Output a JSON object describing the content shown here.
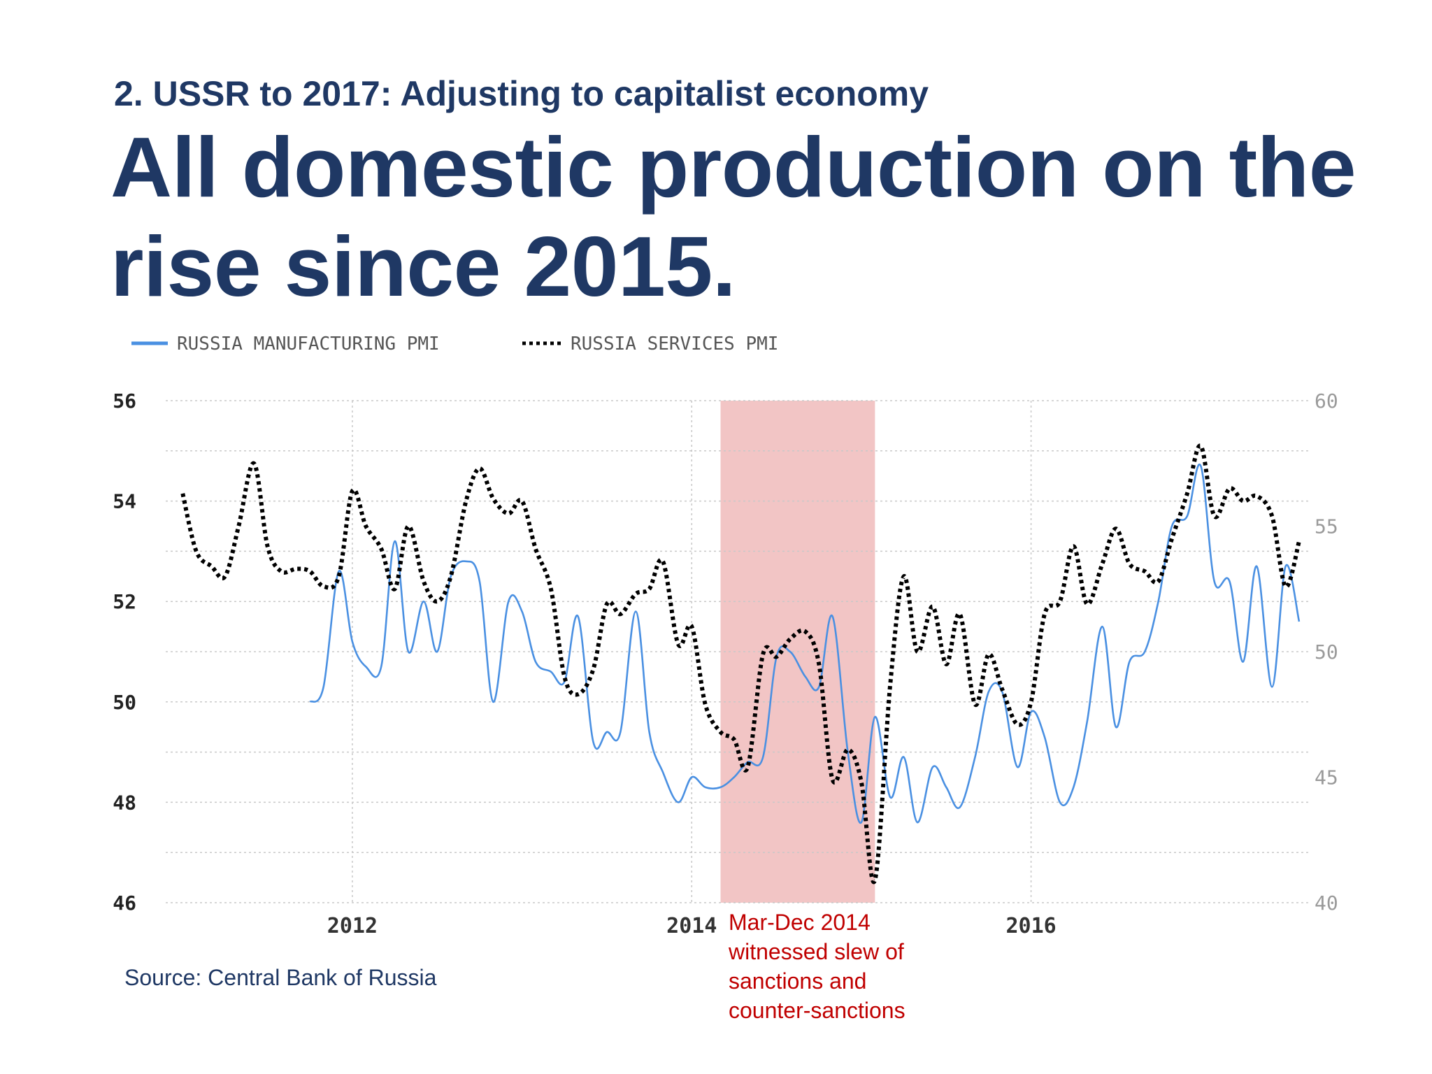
{
  "slide": {
    "subtitle": "2. USSR to 2017: Adjusting to capitalist economy",
    "title": "All domestic production on the rise since 2015.",
    "source": "Source: Central Bank of Russia",
    "annotation": "Mar-Dec 2014 witnessed slew of sanctions and counter-sanctions",
    "colors": {
      "heading": "#1f3864",
      "annotation": "#c00000",
      "manufacturing": "#4a90e2",
      "services": "#000000",
      "highlight": "#f2c5c5"
    }
  },
  "chart_data": {
    "type": "line",
    "x_ticks": [
      "2012",
      "2014",
      "2016"
    ],
    "x_tick_values": [
      2012,
      2014,
      2016
    ],
    "xlim": [
      2010.9,
      2017.65
    ],
    "y_left": {
      "ticks": [
        "46",
        "48",
        "50",
        "52",
        "54",
        "56"
      ],
      "ylim": [
        46,
        56
      ]
    },
    "y_right": {
      "ticks": [
        "40",
        "45",
        "50",
        "55",
        "60"
      ],
      "ylim": [
        40,
        60
      ]
    },
    "grid": true,
    "legend_position": "top-left",
    "highlight_region": {
      "from": 2014.17,
      "to": 2015.08
    },
    "series": [
      {
        "name": "RUSSIA MANUFACTURING PMI",
        "axis": "left",
        "style": "solid",
        "points": [
          [
            2011.75,
            50.0
          ],
          [
            2011.83,
            50.3
          ],
          [
            2011.92,
            52.6
          ],
          [
            2012.0,
            51.2
          ],
          [
            2012.08,
            50.7
          ],
          [
            2012.17,
            50.7
          ],
          [
            2012.25,
            53.2
          ],
          [
            2012.33,
            51.0
          ],
          [
            2012.42,
            52.0
          ],
          [
            2012.5,
            51.0
          ],
          [
            2012.58,
            52.5
          ],
          [
            2012.67,
            52.8
          ],
          [
            2012.75,
            52.4
          ],
          [
            2012.83,
            50.0
          ],
          [
            2012.92,
            52.0
          ],
          [
            2013.0,
            51.8
          ],
          [
            2013.08,
            50.8
          ],
          [
            2013.17,
            50.6
          ],
          [
            2013.25,
            50.4
          ],
          [
            2013.33,
            51.7
          ],
          [
            2013.42,
            49.2
          ],
          [
            2013.5,
            49.4
          ],
          [
            2013.58,
            49.4
          ],
          [
            2013.67,
            51.8
          ],
          [
            2013.75,
            49.4
          ],
          [
            2013.83,
            48.6
          ],
          [
            2013.92,
            48.0
          ],
          [
            2014.0,
            48.5
          ],
          [
            2014.08,
            48.3
          ],
          [
            2014.17,
            48.3
          ],
          [
            2014.25,
            48.5
          ],
          [
            2014.33,
            48.8
          ],
          [
            2014.42,
            48.9
          ],
          [
            2014.5,
            50.9
          ],
          [
            2014.58,
            51.0
          ],
          [
            2014.67,
            50.5
          ],
          [
            2014.75,
            50.3
          ],
          [
            2014.83,
            51.7
          ],
          [
            2014.92,
            49.0
          ],
          [
            2015.0,
            47.6
          ],
          [
            2015.08,
            49.7
          ],
          [
            2015.17,
            48.1
          ],
          [
            2015.25,
            48.9
          ],
          [
            2015.33,
            47.6
          ],
          [
            2015.42,
            48.7
          ],
          [
            2015.5,
            48.3
          ],
          [
            2015.58,
            47.9
          ],
          [
            2015.67,
            48.9
          ],
          [
            2015.75,
            50.2
          ],
          [
            2015.83,
            50.2
          ],
          [
            2015.92,
            48.7
          ],
          [
            2016.0,
            49.8
          ],
          [
            2016.08,
            49.3
          ],
          [
            2016.17,
            48.0
          ],
          [
            2016.25,
            48.3
          ],
          [
            2016.33,
            49.6
          ],
          [
            2016.42,
            51.5
          ],
          [
            2016.5,
            49.5
          ],
          [
            2016.58,
            50.8
          ],
          [
            2016.67,
            51.0
          ],
          [
            2016.75,
            52.0
          ],
          [
            2016.83,
            53.5
          ],
          [
            2016.92,
            53.7
          ],
          [
            2017.0,
            54.7
          ],
          [
            2017.08,
            52.4
          ],
          [
            2017.17,
            52.4
          ],
          [
            2017.25,
            50.8
          ],
          [
            2017.33,
            52.7
          ],
          [
            2017.42,
            50.3
          ],
          [
            2017.5,
            52.7
          ],
          [
            2017.58,
            51.6
          ]
        ]
      },
      {
        "name": "RUSSIA SERVICES PMI",
        "axis": "right",
        "style": "dotted",
        "points": [
          [
            2011.0,
            56.3
          ],
          [
            2011.08,
            54.0
          ],
          [
            2011.17,
            53.4
          ],
          [
            2011.25,
            53.0
          ],
          [
            2011.33,
            55.0
          ],
          [
            2011.42,
            57.5
          ],
          [
            2011.5,
            54.2
          ],
          [
            2011.58,
            53.2
          ],
          [
            2011.67,
            53.3
          ],
          [
            2011.75,
            53.2
          ],
          [
            2011.83,
            52.6
          ],
          [
            2011.92,
            53.0
          ],
          [
            2012.0,
            56.4
          ],
          [
            2012.08,
            55.0
          ],
          [
            2012.17,
            54.1
          ],
          [
            2012.25,
            52.5
          ],
          [
            2012.33,
            55.0
          ],
          [
            2012.42,
            52.8
          ],
          [
            2012.5,
            52.0
          ],
          [
            2012.58,
            53.0
          ],
          [
            2012.67,
            56.0
          ],
          [
            2012.75,
            57.3
          ],
          [
            2012.83,
            56.1
          ],
          [
            2012.92,
            55.5
          ],
          [
            2013.0,
            56.0
          ],
          [
            2013.08,
            54.1
          ],
          [
            2013.17,
            52.5
          ],
          [
            2013.25,
            49.0
          ],
          [
            2013.33,
            48.3
          ],
          [
            2013.42,
            49.3
          ],
          [
            2013.5,
            51.9
          ],
          [
            2013.58,
            51.5
          ],
          [
            2013.67,
            52.3
          ],
          [
            2013.75,
            52.5
          ],
          [
            2013.83,
            53.6
          ],
          [
            2013.92,
            50.3
          ],
          [
            2014.0,
            51.0
          ],
          [
            2014.08,
            47.9
          ],
          [
            2014.17,
            46.8
          ],
          [
            2014.25,
            46.5
          ],
          [
            2014.33,
            45.4
          ],
          [
            2014.42,
            49.9
          ],
          [
            2014.5,
            49.8
          ],
          [
            2014.58,
            50.5
          ],
          [
            2014.67,
            50.8
          ],
          [
            2014.75,
            49.5
          ],
          [
            2014.83,
            44.9
          ],
          [
            2014.92,
            46.1
          ],
          [
            2015.0,
            44.8
          ],
          [
            2015.08,
            40.9
          ],
          [
            2015.17,
            48.7
          ],
          [
            2015.25,
            53.0
          ],
          [
            2015.33,
            50.0
          ],
          [
            2015.42,
            51.8
          ],
          [
            2015.5,
            49.5
          ],
          [
            2015.58,
            51.5
          ],
          [
            2015.67,
            47.9
          ],
          [
            2015.75,
            49.9
          ],
          [
            2015.83,
            48.5
          ],
          [
            2015.92,
            47.1
          ],
          [
            2016.0,
            48.0
          ],
          [
            2016.08,
            51.5
          ],
          [
            2016.17,
            52.0
          ],
          [
            2016.25,
            54.2
          ],
          [
            2016.33,
            51.9
          ],
          [
            2016.42,
            53.5
          ],
          [
            2016.5,
            54.9
          ],
          [
            2016.58,
            53.5
          ],
          [
            2016.67,
            53.2
          ],
          [
            2016.75,
            52.8
          ],
          [
            2016.83,
            54.5
          ],
          [
            2016.92,
            56.3
          ],
          [
            2017.0,
            58.2
          ],
          [
            2017.08,
            55.4
          ],
          [
            2017.17,
            56.5
          ],
          [
            2017.25,
            56.0
          ],
          [
            2017.33,
            56.2
          ],
          [
            2017.42,
            55.4
          ],
          [
            2017.5,
            52.6
          ],
          [
            2017.58,
            54.4
          ]
        ]
      }
    ]
  }
}
